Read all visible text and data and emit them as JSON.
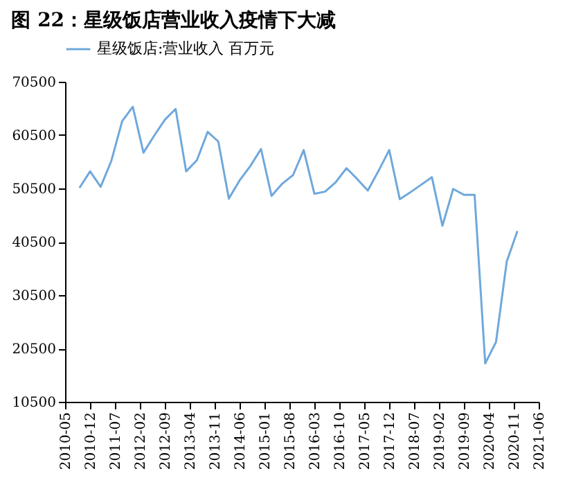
{
  "chart_data": {
    "type": "line",
    "title": "图 22：星级饭店营业收入疫情下大减",
    "x": [
      "2010-09",
      "2010-12",
      "2011-03",
      "2011-06",
      "2011-09",
      "2011-12",
      "2012-03",
      "2012-06",
      "2012-09",
      "2012-12",
      "2013-03",
      "2013-06",
      "2013-09",
      "2013-12",
      "2014-03",
      "2014-06",
      "2014-09",
      "2014-12",
      "2015-03",
      "2015-06",
      "2015-09",
      "2015-12",
      "2016-03",
      "2016-06",
      "2016-09",
      "2016-12",
      "2017-03",
      "2017-06",
      "2017-09",
      "2017-12",
      "2018-03",
      "2018-06",
      "2018-09",
      "2018-12",
      "2019-03",
      "2019-06",
      "2019-09",
      "2019-12",
      "2020-03",
      "2020-06",
      "2020-09",
      "2020-12"
    ],
    "series": [
      {
        "name": "星级饭店:营业收入 百万元",
        "color": "#6fa8dc",
        "values": [
          50600,
          53700,
          50800,
          55700,
          63100,
          65800,
          57200,
          60400,
          63400,
          65400,
          53700,
          55800,
          61100,
          59300,
          48600,
          52000,
          54700,
          57900,
          49100,
          51400,
          53000,
          57700,
          49500,
          49900,
          51700,
          54300,
          52300,
          50100,
          53800,
          57700,
          48500,
          49800,
          51200,
          52600,
          43500,
          50400,
          49300,
          49300,
          17700,
          21700,
          36800,
          42500
        ]
      }
    ],
    "xlim": [
      "2010-05",
      "2021-06"
    ],
    "xticks": [
      "2010-05",
      "2010-12",
      "2011-07",
      "2012-02",
      "2012-09",
      "2013-04",
      "2013-11",
      "2014-06",
      "2015-01",
      "2015-08",
      "2016-03",
      "2016-10",
      "2017-05",
      "2017-12",
      "2018-07",
      "2019-02",
      "2019-09",
      "2020-04",
      "2020-11",
      "2021-06"
    ],
    "ylim": [
      10500,
      70500
    ],
    "yticks": [
      10500,
      20500,
      30500,
      40500,
      50500,
      60500,
      70500
    ],
    "grid": false,
    "legend": "top",
    "marker": "none",
    "line_style": "solid"
  }
}
